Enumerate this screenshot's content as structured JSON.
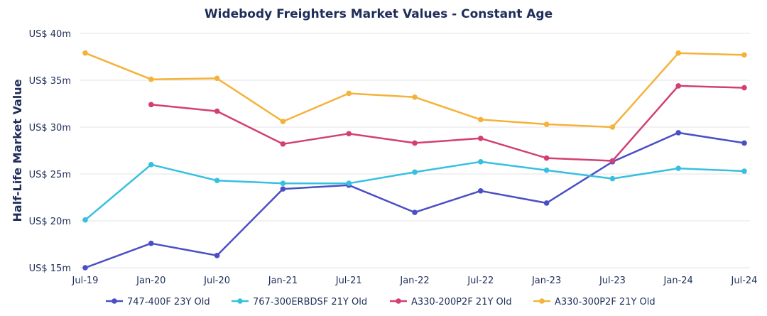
{
  "chart_data": {
    "type": "line",
    "title": "Widebody Freighters Market Values - Constant Age",
    "ylabel": "Half-Life Market Value",
    "xlabel": "",
    "ylim": [
      15,
      40
    ],
    "yticks": [
      15,
      20,
      25,
      30,
      35,
      40
    ],
    "ytick_labels": [
      "US$ 15m",
      "US$ 20m",
      "US$ 25m",
      "US$ 30m",
      "US$ 35m",
      "US$ 40m"
    ],
    "categories": [
      "Jul-19",
      "Jan-20",
      "Jul-20",
      "Jan-21",
      "Jul-21",
      "Jan-22",
      "Jul-22",
      "Jan-23",
      "Jul-23",
      "Jan-24",
      "Jul-24"
    ],
    "grid": true,
    "legend": "bottom",
    "series": [
      {
        "name": "747-400F 23Y Old",
        "color": "#4b4fc4",
        "values": [
          15.0,
          17.6,
          16.3,
          23.4,
          23.8,
          20.9,
          23.2,
          21.9,
          26.3,
          29.4,
          28.3
        ]
      },
      {
        "name": "767-300ERBDSF 21Y Old",
        "color": "#36c0e0",
        "values": [
          20.1,
          26.0,
          24.3,
          24.0,
          24.0,
          25.2,
          26.3,
          25.4,
          24.5,
          25.6,
          25.3
        ]
      },
      {
        "name": "A330-200P2F 21Y Old",
        "color": "#d23f72",
        "values": [
          null,
          32.4,
          31.7,
          28.2,
          29.3,
          28.3,
          28.8,
          26.7,
          26.4,
          34.4,
          34.2
        ]
      },
      {
        "name": "A330-300P2F 21Y Old",
        "color": "#f5b23a",
        "values": [
          37.9,
          35.1,
          35.2,
          30.6,
          33.6,
          33.2,
          30.8,
          30.3,
          30.0,
          37.9,
          37.7
        ]
      }
    ]
  }
}
